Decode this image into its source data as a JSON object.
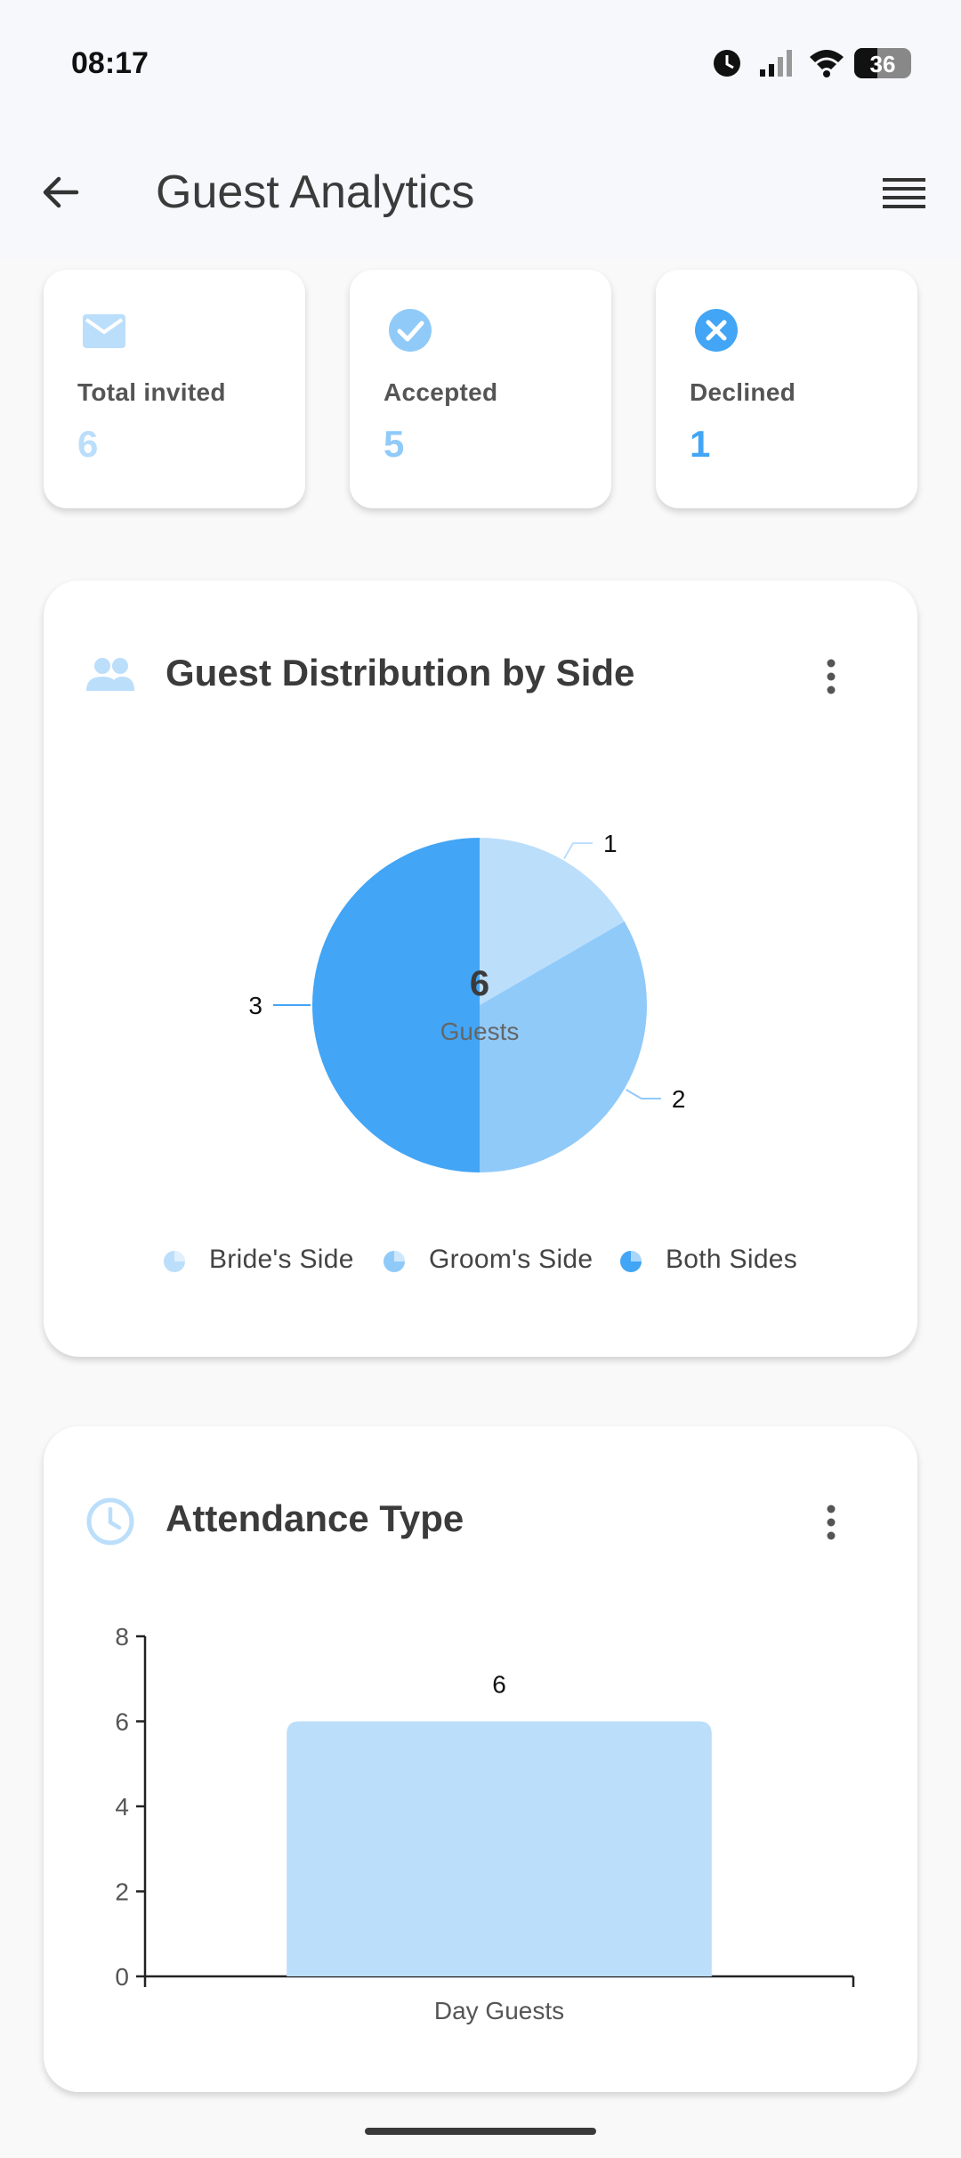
{
  "status_bar": {
    "time": "08:17",
    "battery": "36"
  },
  "app_bar": {
    "title": "Guest Analytics"
  },
  "stats": [
    {
      "label": "Total invited",
      "value": "6",
      "icon": "mail-icon",
      "color": "#bbdefb"
    },
    {
      "label": "Accepted",
      "value": "5",
      "icon": "check-circle-icon",
      "color": "#90caf9"
    },
    {
      "label": "Declined",
      "value": "1",
      "icon": "cancel-circle-icon",
      "color": "#42a5f5"
    }
  ],
  "distribution_card": {
    "title": "Guest Distribution by Side",
    "icon": "people-icon",
    "center_value": "6",
    "center_label": "Guests"
  },
  "attendance_card": {
    "title": "Attendance Type",
    "icon": "clock-icon"
  },
  "chart_data": [
    {
      "type": "pie",
      "categories": [
        "Bride's Side",
        "Groom's Side",
        "Both Sides"
      ],
      "values": [
        1,
        2,
        3
      ],
      "colors": [
        "#bbdefb",
        "#90caf9",
        "#42a5f5"
      ],
      "data_labels": [
        "1",
        "2",
        "3"
      ],
      "legend": "bottom"
    },
    {
      "type": "bar",
      "categories": [
        "Day Guests"
      ],
      "values": [
        6
      ],
      "data_labels": [
        "6"
      ],
      "ylim": [
        0,
        8
      ],
      "yticks": [
        "0",
        "2",
        "4",
        "6",
        "8"
      ],
      "color": "#bbdefb",
      "grid": false
    }
  ]
}
